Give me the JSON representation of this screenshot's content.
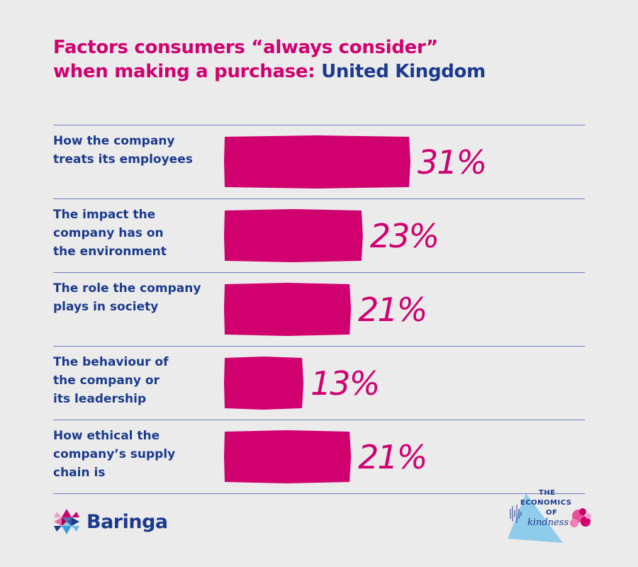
{
  "title": {
    "line1": "Factors consumers “always consider”",
    "line2_a": "when making a purchase: ",
    "line2_b": "United Kingdom"
  },
  "colors": {
    "bar": "#d0006f",
    "label": "#1b3a8c",
    "divider": "#6d7fb6",
    "background": "#ebebeb"
  },
  "chart_data": {
    "type": "bar",
    "orientation": "horizontal",
    "categories": [
      [
        "How the company",
        "treats its employees"
      ],
      [
        "The impact the",
        "company has on",
        "the environment"
      ],
      [
        "The role the company",
        "plays in society"
      ],
      [
        "The behaviour of",
        "the company or",
        "its leadership"
      ],
      [
        "How ethical the",
        "company’s supply",
        "chain is"
      ]
    ],
    "values": [
      31,
      23,
      21,
      13,
      21
    ],
    "value_labels": [
      "31%",
      "23%",
      "21%",
      "13%",
      "21%"
    ],
    "unit": "%",
    "grid": false
  },
  "branding": {
    "company": "Baringa",
    "badge_line1": "THE",
    "badge_line2": "ECONOMICS",
    "badge_line3": "OF",
    "badge_line4": "kindness"
  }
}
